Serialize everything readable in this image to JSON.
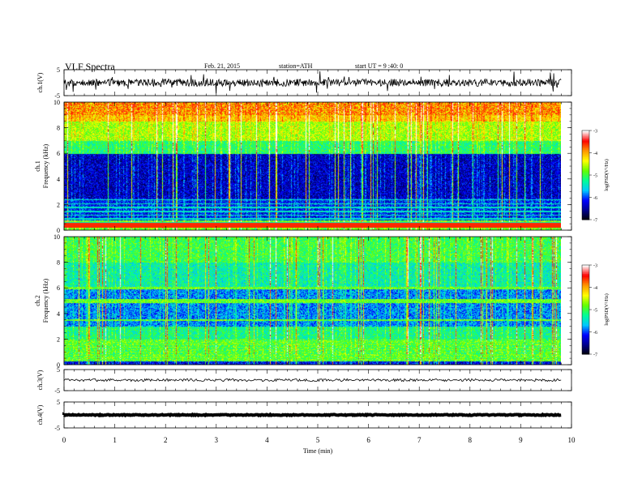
{
  "header": {
    "title": "VLF Spectra",
    "date": "Feb. 21, 2015",
    "station": "station=ATH",
    "start": "start  UT  =   9 :40: 0"
  },
  "chart_data": [
    {
      "type": "line",
      "panel": "ch.1(V)",
      "ylabel": "ch.1(V)",
      "ylim": [
        -5,
        5
      ],
      "yticks": [
        "5",
        "-5"
      ],
      "x_range_min": [
        0,
        9.8
      ],
      "approx_level": 0,
      "description_of_values": "broadband noise roughly between -1.5 and 1.5 V with spikes"
    },
    {
      "type": "heatmap",
      "panel": "ch.1 spectrogram",
      "ylabel": "ch.1\nFrequency (kHz)",
      "ylabel_lines": [
        "ch.1",
        "Frequency (kHz)"
      ],
      "ylim": [
        0,
        10
      ],
      "yticks": [
        "0",
        "2",
        "4",
        "6",
        "8",
        "10"
      ],
      "colorbar": {
        "label": "log(PSD(V²/Hz)",
        "range": [
          -7,
          -3
        ],
        "ticks": [
          "-3",
          "-4",
          "-5",
          "-6",
          "-7"
        ]
      }
    },
    {
      "type": "heatmap",
      "panel": "ch.2 spectrogram",
      "ylabel_lines": [
        "ch.2",
        "Frequency (kHz)"
      ],
      "ylim": [
        0,
        10
      ],
      "yticks": [
        "0",
        "2",
        "4",
        "6",
        "8",
        "10"
      ],
      "colorbar": {
        "label": "log(PSD(V²/Hz)",
        "range": [
          -7,
          -3
        ],
        "ticks": [
          "-3",
          "-4",
          "-5",
          "-6",
          "-7"
        ]
      }
    },
    {
      "type": "line",
      "panel": "ch.3(V)",
      "ylabel": "ch.3(V)",
      "ylim": [
        -5,
        5
      ],
      "yticks": [
        "5",
        "-5"
      ],
      "approx_level": 0
    },
    {
      "type": "line",
      "panel": "ch.4(V)",
      "ylabel": "ch.4(V)",
      "ylim": [
        -5,
        5
      ],
      "yticks": [
        "5",
        "-5"
      ],
      "approx_level": 0
    }
  ],
  "xaxis": {
    "label": "Time  (min)",
    "xlim": [
      0,
      10
    ],
    "ticks": [
      "0",
      "1",
      "2",
      "3",
      "4",
      "5",
      "6",
      "7",
      "8",
      "9",
      "10"
    ]
  },
  "colors": {
    "scale": [
      "#000000",
      "#00008b",
      "#0000ff",
      "#00c8ff",
      "#00ff96",
      "#64ff00",
      "#ffff00",
      "#ff9600",
      "#ff0000",
      "#ffffff"
    ]
  }
}
